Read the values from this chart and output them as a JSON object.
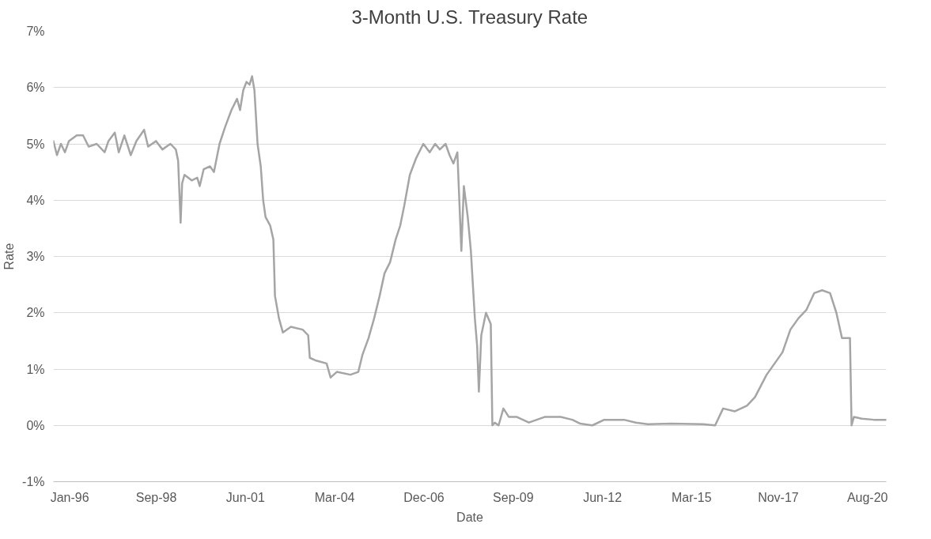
{
  "chart_data": {
    "type": "line",
    "title": "3-Month U.S. Treasury Rate",
    "xlabel": "Date",
    "ylabel": "Rate",
    "x": [
      "1995-07-01",
      "1995-08-10",
      "1995-09-24",
      "1995-11-08",
      "1995-12-23",
      "1996-03-20",
      "1996-05-30",
      "1996-08-01",
      "1996-10-30",
      "1997-01-28",
      "1997-03-12",
      "1997-05-22",
      "1997-07-06",
      "1997-09-07",
      "1997-11-18",
      "1998-01-20",
      "1998-04-17",
      "1998-06-01",
      "1998-08-29",
      "1998-11-09",
      "1999-02-07",
      "1999-04-09",
      "1999-05-05",
      "1999-06-02",
      "1999-06-19",
      "1999-07-16",
      "1999-10-05",
      "1999-12-06",
      "2000-01-03",
      "2000-02-17",
      "2000-04-28",
      "2000-06-11",
      "2000-08-13",
      "2000-10-15",
      "2000-12-25",
      "2001-02-26",
      "2001-04-01",
      "2001-05-07",
      "2001-06-12",
      "2001-07-17",
      "2001-08-14",
      "2001-09-10",
      "2001-10-15",
      "2001-11-20",
      "2001-12-17",
      "2002-01-13",
      "2002-03-06",
      "2002-04-11",
      "2002-04-29",
      "2002-06-13",
      "2002-07-27",
      "2002-10-25",
      "2003-03-07",
      "2003-05-08",
      "2003-05-26",
      "2003-08-06",
      "2003-12-01",
      "2004-01-15",
      "2004-03-25",
      "2004-08-25",
      "2004-11-22",
      "2005-01-07",
      "2005-03-17",
      "2005-05-19",
      "2005-07-20",
      "2005-09-13",
      "2005-11-15",
      "2006-01-16",
      "2006-03-09",
      "2006-04-23",
      "2006-06-25",
      "2006-09-05",
      "2006-11-24",
      "2007-02-04",
      "2007-04-06",
      "2007-05-29",
      "2007-08-01",
      "2007-09-15",
      "2007-10-29",
      "2007-12-12",
      "2008-01-26",
      "2008-02-23",
      "2008-04-07",
      "2008-05-12",
      "2008-06-26",
      "2008-07-22",
      "2008-08-10",
      "2008-09-06",
      "2008-10-29",
      "2008-12-22",
      "2009-01-09",
      "2009-02-05",
      "2009-03-20",
      "2009-05-13",
      "2009-07-14",
      "2009-10-12",
      "2010-02-24",
      "2010-08-20",
      "2011-02-16",
      "2011-06-28",
      "2011-09-26",
      "2012-02-08",
      "2012-06-20",
      "2013-01-30",
      "2013-06-12",
      "2013-10-24",
      "2014-07-18",
      "2015-07-10",
      "2015-11-21",
      "2016-02-19",
      "2016-07-01",
      "2016-11-13",
      "2017-02-11",
      "2017-06-23",
      "2017-09-21",
      "2017-12-19",
      "2018-03-17",
      "2018-06-15",
      "2018-09-13",
      "2018-12-11",
      "2019-03-09",
      "2019-06-07",
      "2019-08-17",
      "2019-10-19",
      "2020-01-17",
      "2020-02-04",
      "2020-03-01",
      "2020-05-29",
      "2020-10-11",
      "2021-03-01"
    ],
    "series": [
      {
        "color": "#a5a5a5",
        "values": [
          5.05,
          4.8,
          5.0,
          4.85,
          5.05,
          5.15,
          5.15,
          4.95,
          5.0,
          4.85,
          5.05,
          5.2,
          4.85,
          5.15,
          4.8,
          5.05,
          5.25,
          4.95,
          5.05,
          4.9,
          5.0,
          4.9,
          4.7,
          3.6,
          4.3,
          4.45,
          4.35,
          4.4,
          4.25,
          4.55,
          4.6,
          4.5,
          5.0,
          5.3,
          5.6,
          5.8,
          5.6,
          5.95,
          6.1,
          6.05,
          6.2,
          5.95,
          5.0,
          4.6,
          4.0,
          3.7,
          3.55,
          3.3,
          2.3,
          1.9,
          1.65,
          1.75,
          1.7,
          1.6,
          1.2,
          1.15,
          1.1,
          0.85,
          0.95,
          0.9,
          0.95,
          1.25,
          1.55,
          1.9,
          2.3,
          2.7,
          2.9,
          3.3,
          3.55,
          3.9,
          4.45,
          4.75,
          5.0,
          4.85,
          5.0,
          4.9,
          5.0,
          4.8,
          4.65,
          4.85,
          3.1,
          4.25,
          3.7,
          3.1,
          1.9,
          1.4,
          0.6,
          1.6,
          2.0,
          1.8,
          0.0,
          0.05,
          0.0,
          0.3,
          0.15,
          0.15,
          0.05,
          0.15,
          0.15,
          0.1,
          0.03,
          0.0,
          0.1,
          0.1,
          0.05,
          0.02,
          0.03,
          0.02,
          0.0,
          0.3,
          0.25,
          0.35,
          0.5,
          0.9,
          1.1,
          1.3,
          1.7,
          1.9,
          2.05,
          2.35,
          2.4,
          2.35,
          2.0,
          1.55,
          1.55,
          0.0,
          0.15,
          0.12,
          0.1,
          0.1
        ]
      }
    ],
    "xlim": [
      "1995-07-01",
      "2021-03-01"
    ],
    "xticks": [
      {
        "value": "1996-01-01",
        "label": "Jan-96"
      },
      {
        "value": "1998-09-01",
        "label": "Sep-98"
      },
      {
        "value": "2001-06-01",
        "label": "Jun-01"
      },
      {
        "value": "2004-03-01",
        "label": "Mar-04"
      },
      {
        "value": "2006-12-01",
        "label": "Dec-06"
      },
      {
        "value": "2009-09-01",
        "label": "Sep-09"
      },
      {
        "value": "2012-06-01",
        "label": "Jun-12"
      },
      {
        "value": "2015-03-01",
        "label": "Mar-15"
      },
      {
        "value": "2017-11-01",
        "label": "Nov-17"
      },
      {
        "value": "2020-08-01",
        "label": "Aug-20"
      }
    ],
    "ylim": [
      -1,
      7
    ],
    "yticks": [
      {
        "value": -1,
        "label": "-1%"
      },
      {
        "value": 0,
        "label": "0%"
      },
      {
        "value": 1,
        "label": "1%"
      },
      {
        "value": 2,
        "label": "2%"
      },
      {
        "value": 3,
        "label": "3%"
      },
      {
        "value": 4,
        "label": "4%"
      },
      {
        "value": 5,
        "label": "5%"
      },
      {
        "value": 6,
        "label": "6%"
      },
      {
        "value": 7,
        "label": "7%"
      }
    ],
    "grid": "y"
  }
}
